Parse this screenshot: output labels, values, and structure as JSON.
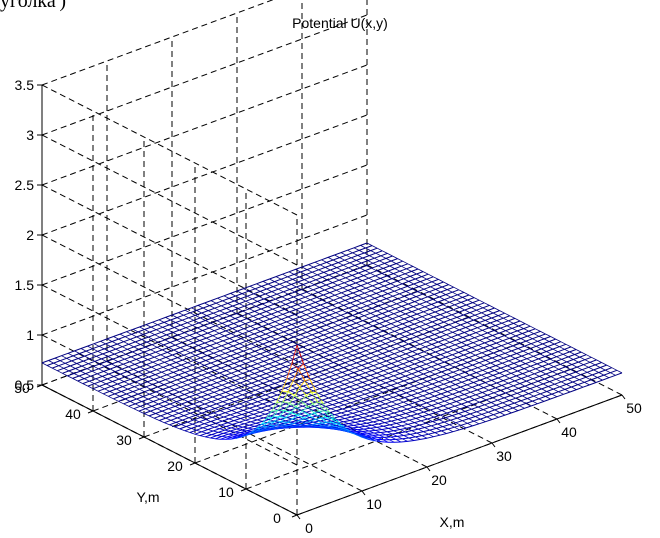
{
  "caption_fragment": "уголка')",
  "chart_data": {
    "type": "surface",
    "title": "Potential U(x,y)",
    "xlabel": "X,m",
    "ylabel": "Y,m",
    "zlabel": "",
    "xlim": [
      0,
      50
    ],
    "ylim": [
      0,
      50
    ],
    "zlim": [
      0.5,
      3.5
    ],
    "x_ticks": [
      0,
      10,
      20,
      30,
      40,
      50
    ],
    "y_ticks": [
      0,
      10,
      20,
      30,
      40,
      50
    ],
    "z_ticks": [
      0.5,
      1,
      1.5,
      2,
      2.5,
      3,
      3.5
    ],
    "grid": true,
    "colormap": "jet",
    "peak": {
      "x": 0,
      "y": 0,
      "u": 2.2
    },
    "edge_value": 0.72
  }
}
